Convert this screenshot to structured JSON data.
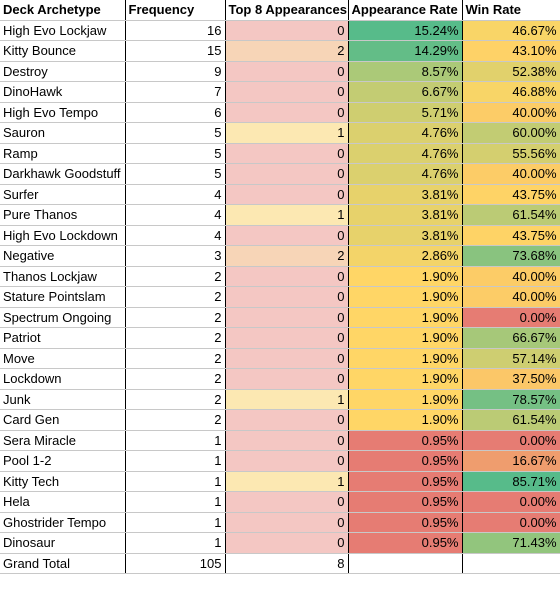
{
  "table": {
    "header": [
      "Deck Archetype",
      "Frequency",
      "Top 8 Appearances",
      "Appearance Rate",
      "Win Rate"
    ],
    "rows": [
      [
        "High Evo Lockjaw",
        16,
        0,
        "15.24%",
        "46.67%"
      ],
      [
        "Kitty Bounce",
        15,
        2,
        "14.29%",
        "43.10%"
      ],
      [
        "Destroy",
        9,
        0,
        "8.57%",
        "52.38%"
      ],
      [
        "DinoHawk",
        7,
        0,
        "6.67%",
        "46.88%"
      ],
      [
        "High Evo Tempo",
        6,
        0,
        "5.71%",
        "40.00%"
      ],
      [
        "Sauron",
        5,
        1,
        "4.76%",
        "60.00%"
      ],
      [
        "Ramp",
        5,
        0,
        "4.76%",
        "55.56%"
      ],
      [
        "Darkhawk Goodstuff",
        5,
        0,
        "4.76%",
        "40.00%"
      ],
      [
        "Surfer",
        4,
        0,
        "3.81%",
        "43.75%"
      ],
      [
        "Pure Thanos",
        4,
        1,
        "3.81%",
        "61.54%"
      ],
      [
        "High Evo Lockdown",
        4,
        0,
        "3.81%",
        "43.75%"
      ],
      [
        "Negative",
        3,
        2,
        "2.86%",
        "73.68%"
      ],
      [
        "Thanos Lockjaw",
        2,
        0,
        "1.90%",
        "40.00%"
      ],
      [
        "Stature Pointslam",
        2,
        0,
        "1.90%",
        "40.00%"
      ],
      [
        "Spectrum Ongoing",
        2,
        0,
        "1.90%",
        "0.00%"
      ],
      [
        "Patriot",
        2,
        0,
        "1.90%",
        "66.67%"
      ],
      [
        "Move",
        2,
        0,
        "1.90%",
        "57.14%"
      ],
      [
        "Lockdown",
        2,
        0,
        "1.90%",
        "37.50%"
      ],
      [
        "Junk",
        2,
        1,
        "1.90%",
        "78.57%"
      ],
      [
        "Card Gen",
        2,
        0,
        "1.90%",
        "61.54%"
      ],
      [
        "Sera Miracle",
        1,
        0,
        "0.95%",
        "0.00%"
      ],
      [
        "Pool 1-2",
        1,
        0,
        "0.95%",
        "16.67%"
      ],
      [
        "Kitty Tech",
        1,
        1,
        "0.95%",
        "85.71%"
      ],
      [
        "Hela",
        1,
        0,
        "0.95%",
        "0.00%"
      ],
      [
        "Ghostrider Tempo",
        1,
        0,
        "0.95%",
        "0.00%"
      ],
      [
        "Dinosaur",
        1,
        0,
        "0.95%",
        "71.43%"
      ]
    ],
    "total": [
      "Grand Total",
      105,
      8
    ]
  }
}
